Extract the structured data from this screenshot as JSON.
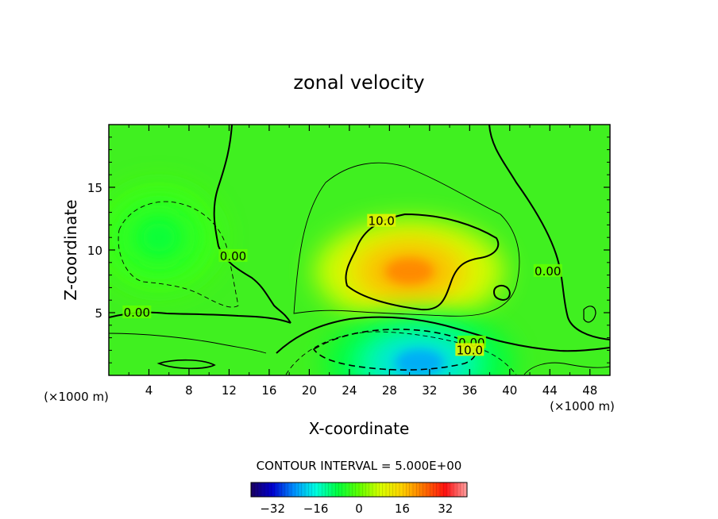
{
  "chart_data": {
    "type": "heatmap",
    "title": "zonal velocity",
    "xlabel": "X-coordinate",
    "ylabel": "Z-coordinate",
    "x_unit": "(×1000 m)",
    "z_unit": "(×1000 m)",
    "xlim": [
      0,
      50
    ],
    "ylim": [
      0,
      20
    ],
    "x_ticks": [
      4,
      8,
      12,
      16,
      20,
      24,
      28,
      32,
      36,
      40,
      44,
      48
    ],
    "y_ticks": [
      5,
      10,
      15
    ],
    "grid": false,
    "contour_interval_label": "CONTOUR INTERVAL = 5.000E+00",
    "contour_interval": 5,
    "colorbar": {
      "range": [
        -40,
        40
      ],
      "ticks": [
        -32,
        -16,
        0,
        16,
        32
      ],
      "colors": [
        "#1a0060",
        "#0000d0",
        "#0090ff",
        "#00ffe0",
        "#00ff40",
        "#60ff00",
        "#d8ff00",
        "#ffd000",
        "#ff7000",
        "#ff1010",
        "#ffa0a0"
      ]
    },
    "background_color": "#40f020",
    "contour_labels": [
      {
        "text": "0.00",
        "x": 2.8,
        "z": 5.0
      },
      {
        "text": "0.00",
        "x": 12.4,
        "z": 9.5
      },
      {
        "text": "10.0",
        "x": 27.2,
        "z": 12.3
      },
      {
        "text": "0.00",
        "x": 43.8,
        "z": 8.3
      },
      {
        "text": "0.00",
        "x": 36.2,
        "z": 2.6
      },
      {
        "text": "10.0",
        "x": 36.0,
        "z": 2.0
      }
    ],
    "field_extrema": [
      {
        "kind": "max",
        "x": 30,
        "z": 8.3,
        "value": 22
      },
      {
        "kind": "min",
        "x": 31,
        "z": 1.0,
        "value": -22
      },
      {
        "kind": "min",
        "x": 5,
        "z": 11,
        "value": -7
      }
    ]
  }
}
